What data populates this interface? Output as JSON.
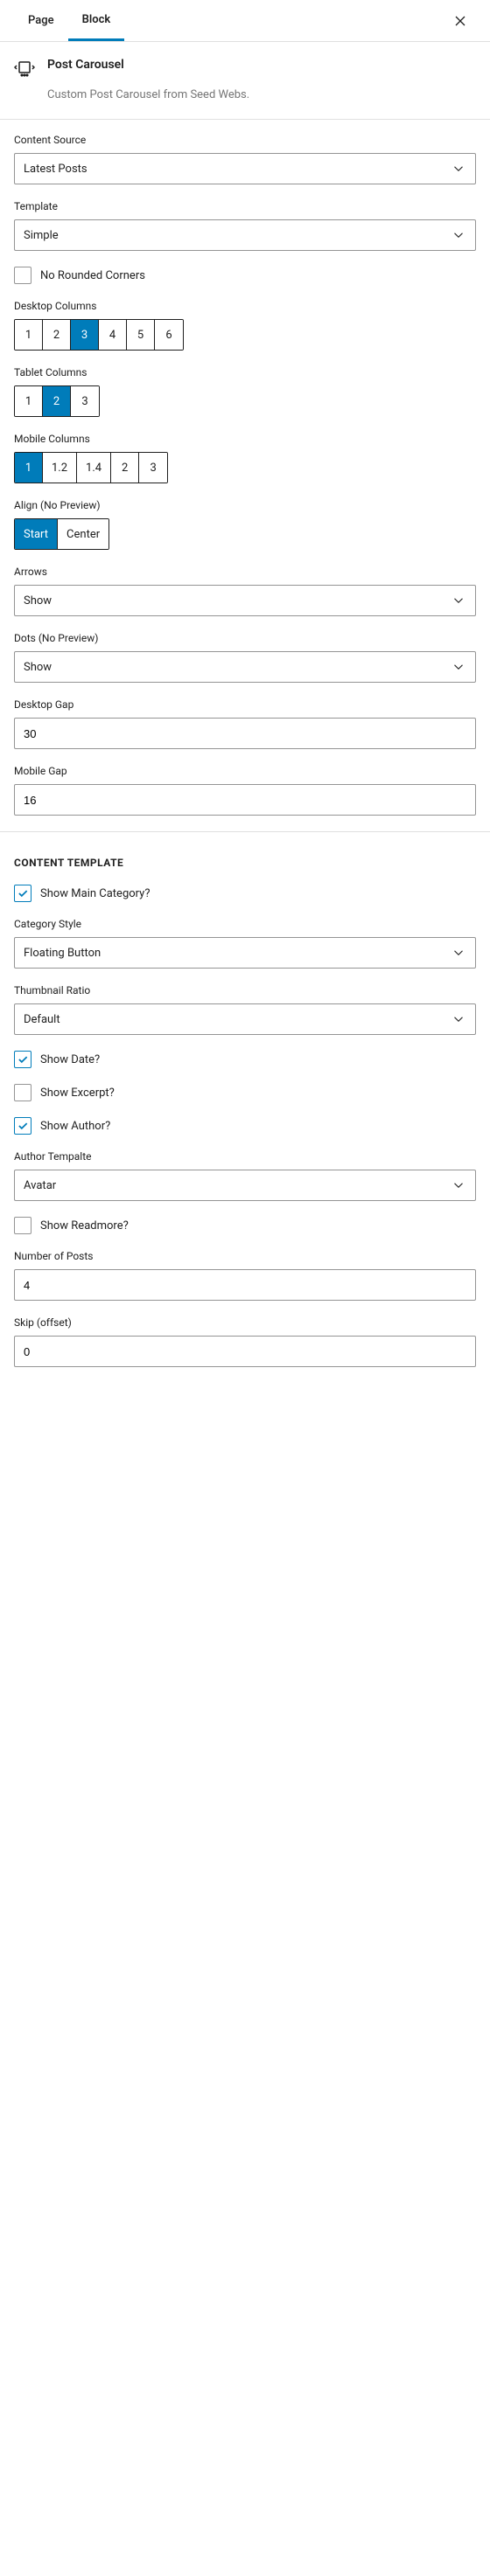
{
  "colors": {
    "accent": "#007cba",
    "border": "#e0e0e0",
    "muted": "#757575"
  },
  "tabs": {
    "page": "Page",
    "block": "Block",
    "active": "Block"
  },
  "header": {
    "title": "Post Carousel",
    "description": "Custom Post Carousel from Seed Webs."
  },
  "content_source": {
    "label": "Content Source",
    "value": "Latest Posts"
  },
  "template": {
    "label": "Template",
    "value": "Simple"
  },
  "no_rounded": {
    "label": "No Rounded Corners",
    "checked": false
  },
  "desktop_columns": {
    "label": "Desktop Columns",
    "options": [
      "1",
      "2",
      "3",
      "4",
      "5",
      "6"
    ],
    "selected": "3"
  },
  "tablet_columns": {
    "label": "Tablet Columns",
    "options": [
      "1",
      "2",
      "3"
    ],
    "selected": "2"
  },
  "mobile_columns": {
    "label": "Mobile Columns",
    "options": [
      "1",
      "1.2",
      "1.4",
      "2",
      "3"
    ],
    "selected": "1"
  },
  "align": {
    "label": "Align (No Preview)",
    "options": [
      "Start",
      "Center"
    ],
    "selected": "Start"
  },
  "arrows": {
    "label": "Arrows",
    "value": "Show"
  },
  "dots": {
    "label": "Dots (No Preview)",
    "value": "Show"
  },
  "desktop_gap": {
    "label": "Desktop Gap",
    "value": "30"
  },
  "mobile_gap": {
    "label": "Mobile Gap",
    "value": "16"
  },
  "content_template": {
    "heading": "CONTENT TEMPLATE",
    "show_main_category": {
      "label": "Show Main Category?",
      "checked": true
    },
    "category_style": {
      "label": "Category Style",
      "value": "Floating Button"
    },
    "thumbnail_ratio": {
      "label": "Thumbnail Ratio",
      "value": "Default"
    },
    "show_date": {
      "label": "Show Date?",
      "checked": true
    },
    "show_excerpt": {
      "label": "Show Excerpt?",
      "checked": false
    },
    "show_author": {
      "label": "Show Author?",
      "checked": true
    },
    "author_template": {
      "label": "Author Tempalte",
      "value": "Avatar"
    },
    "show_readmore": {
      "label": "Show Readmore?",
      "checked": false
    },
    "number_of_posts": {
      "label": "Number of Posts",
      "value": "4"
    },
    "skip_offset": {
      "label": "Skip (offset)",
      "value": "0"
    }
  }
}
